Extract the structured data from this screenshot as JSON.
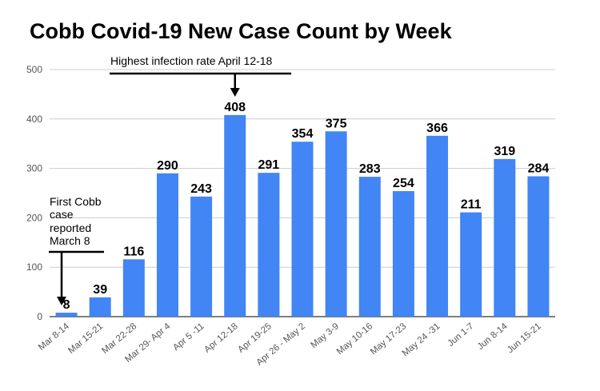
{
  "chart_data": {
    "type": "bar",
    "title": "Cobb Covid-19 New Case Count by Week",
    "xlabel": "",
    "ylabel": "",
    "ylim": [
      0,
      500
    ],
    "yticks": [
      0,
      100,
      200,
      300,
      400,
      500
    ],
    "grid": true,
    "bar_color": "#4285f4",
    "categories": [
      "Mar 8-14",
      "Mar 15-21",
      "Mar 22-28",
      "Mar 29- Apr 4",
      "Apr 5 -11",
      "Apr 12-18",
      "Apr 19-25",
      "Apr 26 - May 2",
      "May 3-9",
      "May 10-16",
      "May 17-23",
      "May 24 -31",
      "Jun 1-7",
      "Jun 8-14",
      "Jun 15-21"
    ],
    "values": [
      8,
      39,
      116,
      290,
      243,
      408,
      291,
      354,
      375,
      283,
      254,
      366,
      211,
      319,
      284
    ],
    "annotations": [
      {
        "text": "Highest infection rate April 12-18",
        "target_category": "Apr 12-18"
      },
      {
        "text_lines": [
          "First Cobb",
          "case",
          "reported",
          "March 8"
        ],
        "target_category": "Mar 8-14"
      }
    ]
  }
}
